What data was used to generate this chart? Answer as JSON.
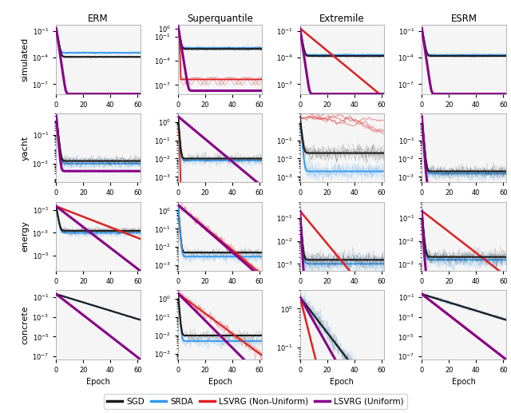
{
  "col_titles": [
    "ERM",
    "Superquantile",
    "Extremile",
    "ESRM"
  ],
  "row_labels": [
    "simulated",
    "yacht",
    "energy",
    "concrete"
  ],
  "x_ticks": [
    0,
    20,
    40,
    60
  ],
  "xlabel": "Epoch",
  "legend_labels": [
    "SGD",
    "SRDA",
    "LSVRG (Non-Uniform)",
    "LSVRG (Uniform)"
  ],
  "colors": {
    "sgd": "#1a1a1a",
    "srda": "#3399ee",
    "lsvrg_nonunif": "#dd2222",
    "lsvrg_unif": "#880088"
  },
  "background": "#f5f5f5",
  "n_epochs": 63,
  "n_runs": 5
}
